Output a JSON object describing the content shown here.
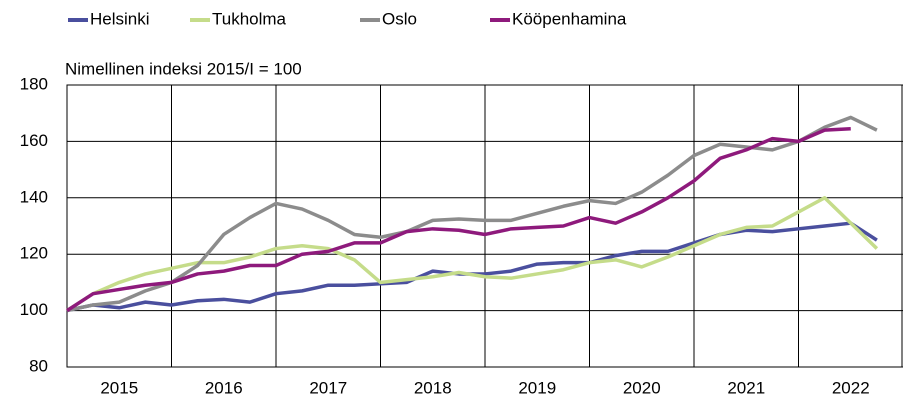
{
  "chart_data": {
    "type": "line",
    "subtitle": "Nimellinen indeksi 2015/I = 100",
    "x": [
      2015,
      2015.25,
      2015.5,
      2015.75,
      2016,
      2016.25,
      2016.5,
      2016.75,
      2017,
      2017.25,
      2017.5,
      2017.75,
      2018,
      2018.25,
      2018.5,
      2018.75,
      2019,
      2019.25,
      2019.5,
      2019.75,
      2020,
      2020.25,
      2020.5,
      2020.75,
      2021,
      2021.25,
      2021.5,
      2021.75,
      2022,
      2022.25,
      2022.5,
      2022.75
    ],
    "series": [
      {
        "name": "Helsinki",
        "color": "#4a4f9e",
        "values": [
          100,
          102,
          101,
          103,
          102,
          103.5,
          104,
          103,
          106,
          107,
          109,
          109,
          109.5,
          110,
          114,
          113,
          113,
          114,
          116.5,
          117,
          117,
          119.5,
          121,
          121,
          124,
          127,
          128.5,
          128,
          129,
          130,
          131,
          125
        ]
      },
      {
        "name": "Tukholma",
        "color": "#c5dc8a",
        "values": [
          100,
          106,
          110,
          113,
          115,
          117,
          117,
          119,
          122,
          123,
          122,
          118,
          110,
          111,
          112,
          113.5,
          112,
          111.5,
          113,
          114.5,
          117,
          118,
          115.5,
          119,
          123,
          127,
          129.5,
          130,
          135,
          140,
          131,
          122
        ]
      },
      {
        "name": "Oslo",
        "color": "#8c8c8c",
        "values": [
          100,
          102,
          103,
          107,
          110,
          116,
          127,
          133,
          138,
          136,
          132,
          127,
          126,
          128,
          132,
          132.5,
          132,
          132,
          134.5,
          137,
          139,
          138,
          142,
          148,
          155,
          159,
          158,
          157,
          160,
          165,
          168.5,
          164
        ]
      },
      {
        "name": "Kööpenhamina",
        "color": "#8e1a7c",
        "values": [
          100,
          106,
          107.5,
          109,
          110,
          113,
          114,
          116,
          116,
          120,
          121,
          124,
          124,
          128,
          129,
          128.5,
          127,
          129,
          129.5,
          130,
          133,
          131,
          135,
          140,
          146,
          154,
          157,
          161,
          160,
          164,
          164.5,
          null
        ]
      }
    ],
    "xlim": [
      2015,
      2023
    ],
    "xticks": [
      2015,
      2016,
      2017,
      2018,
      2019,
      2020,
      2021,
      2022
    ],
    "ylim": [
      80,
      180
    ],
    "yticks": [
      80,
      100,
      120,
      140,
      160,
      180
    ],
    "grid": true
  }
}
